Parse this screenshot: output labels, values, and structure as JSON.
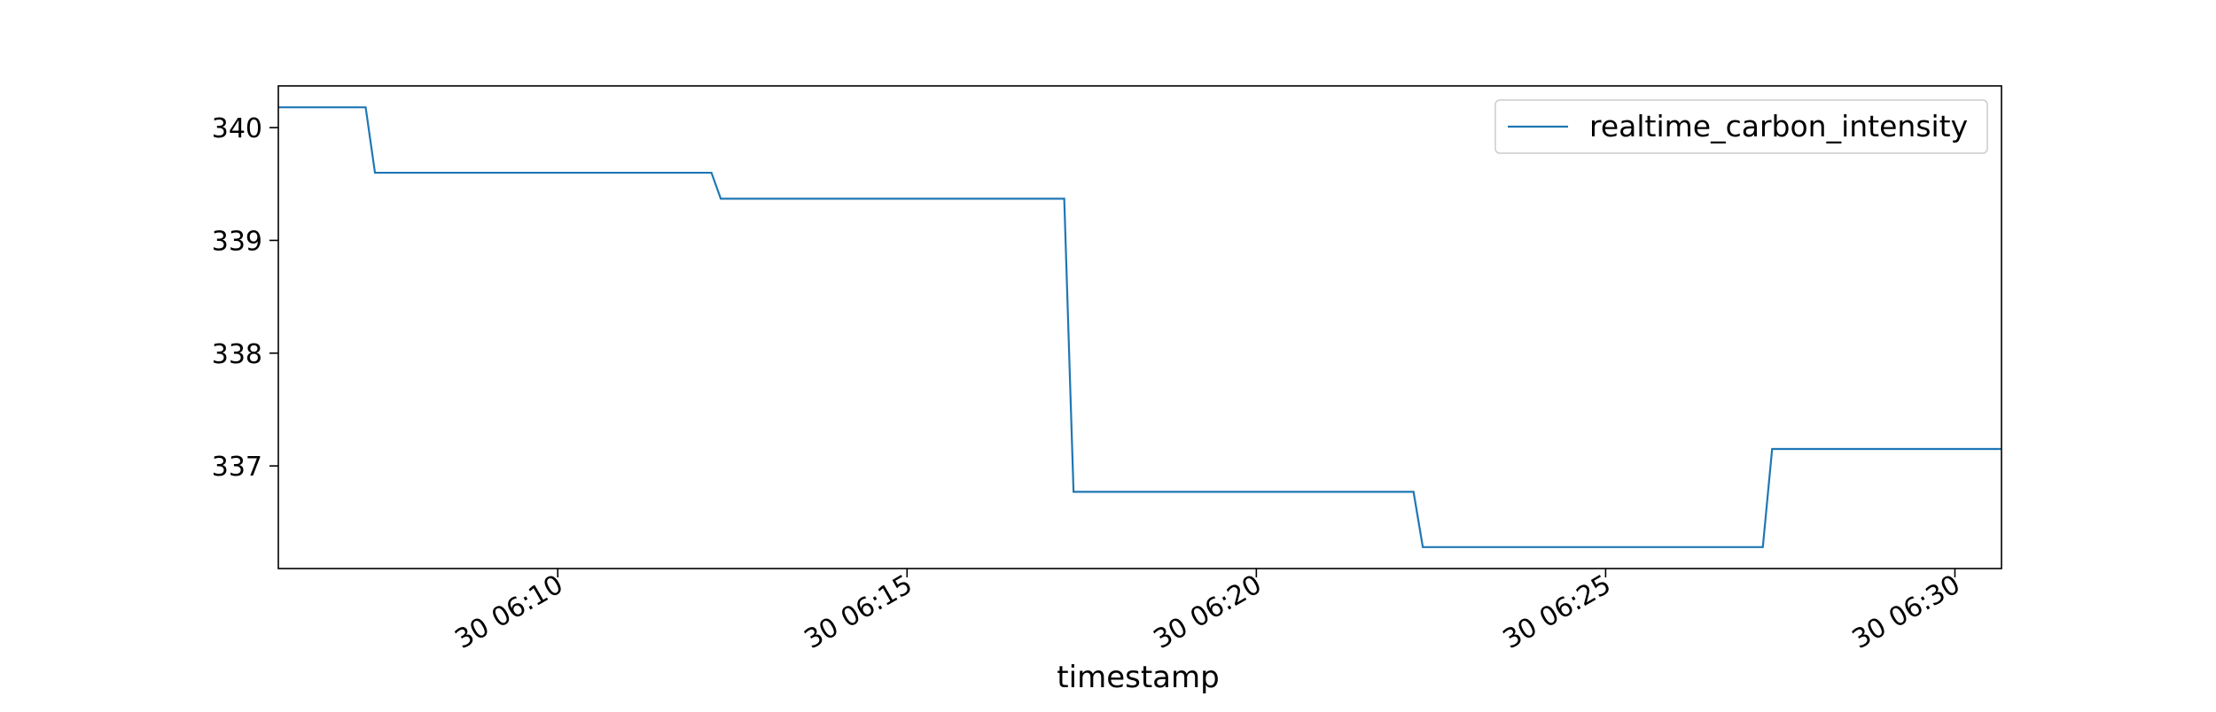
{
  "chart_data": {
    "type": "line",
    "title": "",
    "xlabel": "timestamp",
    "ylabel": "",
    "x_start": "06:06:00",
    "x_end": "06:30:40",
    "x_ticks": [
      {
        "time": "06:10:00",
        "label": "30 06:10"
      },
      {
        "time": "06:15:00",
        "label": "30 06:15"
      },
      {
        "time": "06:20:00",
        "label": "30 06:20"
      },
      {
        "time": "06:25:00",
        "label": "30 06:25"
      },
      {
        "time": "06:30:00",
        "label": "30 06:30"
      }
    ],
    "y_ticks": [
      337,
      338,
      339,
      340
    ],
    "ylim": [
      336.09,
      340.37
    ],
    "grid": false,
    "legend_position": "top-right",
    "series": [
      {
        "name": "realtime_carbon_intensity",
        "color": "#1f77b4",
        "points": [
          {
            "x": "06:06:00",
            "y": 340.18
          },
          {
            "x": "06:07:15",
            "y": 340.18
          },
          {
            "x": "06:07:23",
            "y": 339.6
          },
          {
            "x": "06:12:12",
            "y": 339.6
          },
          {
            "x": "06:12:20",
            "y": 339.37
          },
          {
            "x": "06:17:15",
            "y": 339.37
          },
          {
            "x": "06:17:23",
            "y": 336.77
          },
          {
            "x": "06:22:15",
            "y": 336.77
          },
          {
            "x": "06:22:23",
            "y": 336.28
          },
          {
            "x": "06:27:15",
            "y": 336.28
          },
          {
            "x": "06:27:23",
            "y": 337.15
          },
          {
            "x": "06:30:40",
            "y": 337.15
          }
        ]
      }
    ]
  }
}
